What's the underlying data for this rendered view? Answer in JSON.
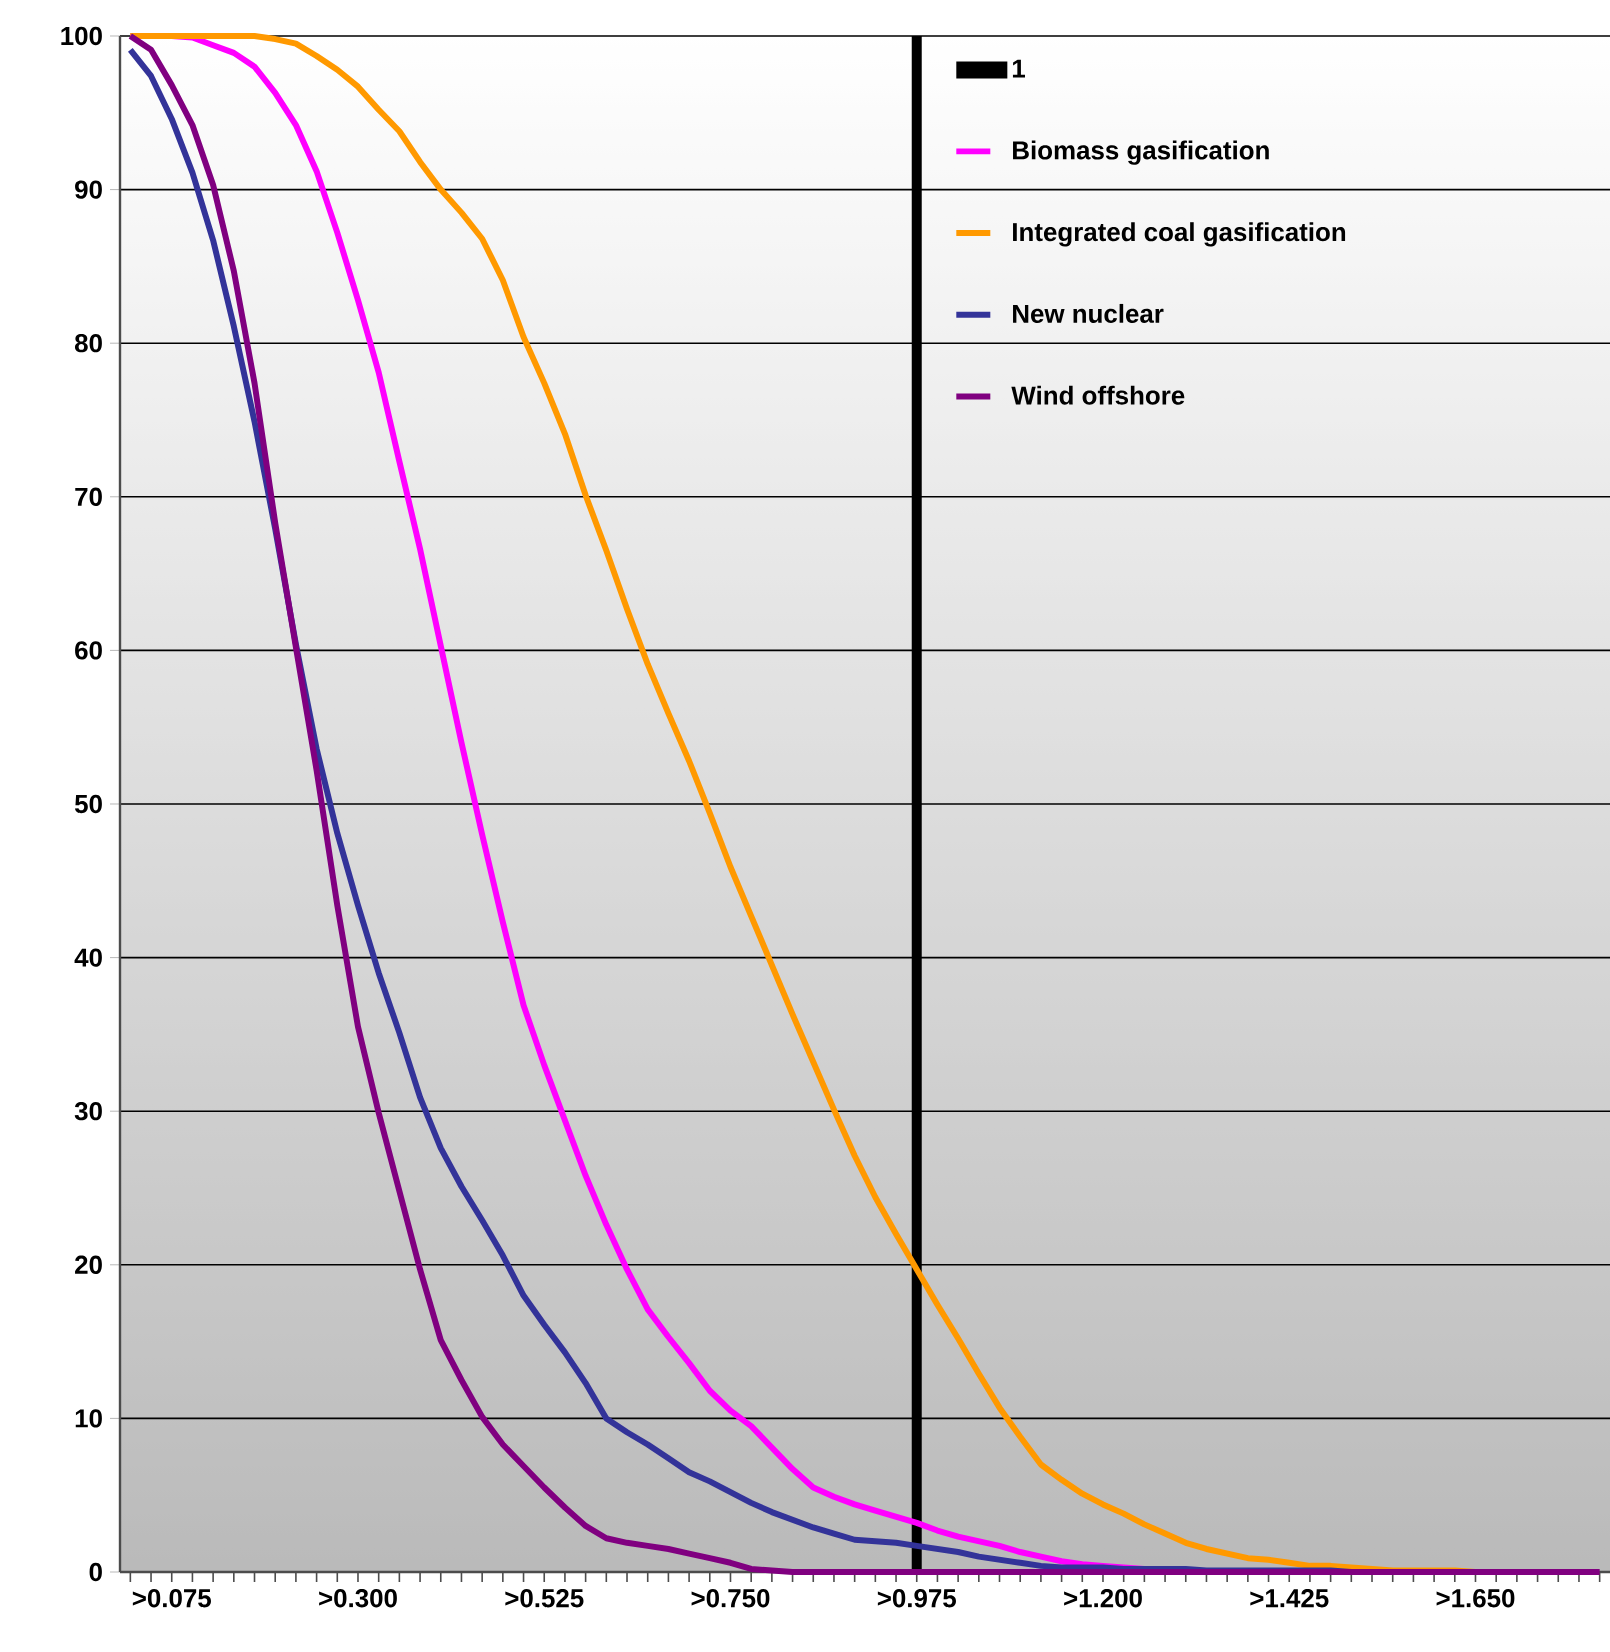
{
  "chart_data": {
    "type": "line",
    "ylim": [
      0,
      100
    ],
    "yticks": [
      0,
      10,
      20,
      30,
      40,
      50,
      60,
      70,
      80,
      90,
      100
    ],
    "grid": "y",
    "legend": "top right",
    "categories": [
      null,
      null,
      ">0.075",
      null,
      null,
      null,
      null,
      null,
      null,
      null,
      null,
      ">0.300",
      null,
      null,
      null,
      null,
      null,
      null,
      null,
      null,
      ">0.525",
      null,
      null,
      null,
      null,
      null,
      null,
      null,
      null,
      ">0.750",
      null,
      null,
      null,
      null,
      null,
      null,
      null,
      null,
      ">0.975",
      null,
      null,
      null,
      null,
      null,
      null,
      null,
      null,
      ">1.200",
      null,
      null,
      null,
      null,
      null,
      null,
      null,
      null,
      ">1.425",
      null,
      null,
      null,
      null,
      null,
      null,
      null,
      null,
      ">1.650",
      null,
      null,
      null,
      null,
      null,
      null
    ],
    "series": [
      {
        "name": "1",
        "type": "bar",
        "color": "#000000",
        "values": [
          null,
          null,
          null,
          null,
          null,
          null,
          null,
          null,
          null,
          null,
          null,
          null,
          null,
          null,
          null,
          null,
          null,
          null,
          null,
          null,
          null,
          null,
          null,
          null,
          null,
          null,
          null,
          null,
          null,
          null,
          null,
          null,
          null,
          null,
          null,
          null,
          null,
          null,
          100,
          null,
          null,
          null,
          null,
          null,
          null,
          null,
          null,
          null,
          null,
          null,
          null,
          null,
          null,
          null,
          null,
          null,
          null,
          null,
          null,
          null,
          null,
          null,
          null,
          null,
          null,
          null,
          null,
          null,
          null,
          null,
          null,
          null
        ]
      },
      {
        "name": "Biomass gasification",
        "color": "#ff00ff",
        "values": [
          100,
          100,
          100,
          99.9,
          99.4,
          98.9,
          98.0,
          96.3,
          94.2,
          91.2,
          87.2,
          82.8,
          78.1,
          72.3,
          66.6,
          60.3,
          54.0,
          48.0,
          42.3,
          36.9,
          33.0,
          29.4,
          25.8,
          22.6,
          19.7,
          17.1,
          15.3,
          13.6,
          11.8,
          10.5,
          9.5,
          8.1,
          6.7,
          5.5,
          4.9,
          4.4,
          4.0,
          3.6,
          3.2,
          2.7,
          2.3,
          2.0,
          1.7,
          1.3,
          1.0,
          0.7,
          0.5,
          0.4,
          0.3,
          0.2,
          null,
          null,
          null,
          null,
          null,
          null,
          null,
          null,
          null,
          null,
          null,
          null,
          null,
          null,
          null,
          null,
          null,
          null,
          null,
          null,
          null,
          null
        ]
      },
      {
        "name": "Integrated coal gasification",
        "color": "#ff9900",
        "values": [
          100,
          100,
          100,
          100,
          100,
          100,
          100,
          99.8,
          99.5,
          98.7,
          97.8,
          96.7,
          95.2,
          93.8,
          91.8,
          90.0,
          88.5,
          86.8,
          84.1,
          80.4,
          77.4,
          74.1,
          70.1,
          66.5,
          62.7,
          59.1,
          55.9,
          52.8,
          49.4,
          45.9,
          42.7,
          39.5,
          36.3,
          33.2,
          30.1,
          27.1,
          24.4,
          22.0,
          19.7,
          17.4,
          15.2,
          12.9,
          10.7,
          8.8,
          7.0,
          6.0,
          5.1,
          4.4,
          3.8,
          3.1,
          2.5,
          1.9,
          1.5,
          1.2,
          0.9,
          0.8,
          0.6,
          0.4,
          0.4,
          0.3,
          0.2,
          0.1,
          0.1,
          0.1,
          0.1,
          0,
          0,
          null,
          null,
          null,
          null,
          null
        ]
      },
      {
        "name": "New nuclear",
        "color": "#333399",
        "values": [
          99.1,
          97.4,
          94.6,
          91.1,
          86.7,
          81.1,
          74.9,
          67.9,
          60.4,
          53.6,
          48.1,
          43.4,
          39.0,
          35.1,
          30.9,
          27.6,
          25.1,
          22.9,
          20.6,
          18.0,
          16.1,
          14.3,
          12.3,
          10.0,
          9.1,
          8.3,
          7.4,
          6.5,
          5.9,
          5.2,
          4.5,
          3.9,
          3.4,
          2.9,
          2.5,
          2.1,
          2.0,
          1.9,
          1.7,
          1.5,
          1.3,
          1.0,
          0.8,
          0.6,
          0.4,
          0.3,
          0.3,
          0.3,
          0.2,
          0.2,
          0.2,
          0.2,
          0.1,
          0.1,
          0.1,
          0.1,
          0.1,
          0.1,
          0.1,
          0,
          0,
          null,
          null,
          null,
          null,
          null,
          null,
          null,
          null,
          null,
          null,
          null
        ]
      },
      {
        "name": "Wind offshore",
        "color": "#800080",
        "values": [
          100,
          99.1,
          96.8,
          94.2,
          90.3,
          84.7,
          77.4,
          68.3,
          60.2,
          52.2,
          43.4,
          35.5,
          29.9,
          24.8,
          19.7,
          15.1,
          12.5,
          10.1,
          8.3,
          6.9,
          5.5,
          4.2,
          3.0,
          2.2,
          1.9,
          1.7,
          1.5,
          1.2,
          0.9,
          0.6,
          0.2,
          0.1,
          0,
          0,
          0,
          0,
          0,
          0,
          0,
          0,
          0,
          0,
          0,
          0,
          0,
          0,
          0,
          0,
          0,
          0,
          0,
          0,
          0,
          0,
          0,
          0,
          0,
          0,
          0,
          0,
          0,
          0,
          0,
          0,
          0,
          0,
          0,
          0,
          0,
          0,
          0,
          0
        ]
      }
    ]
  }
}
